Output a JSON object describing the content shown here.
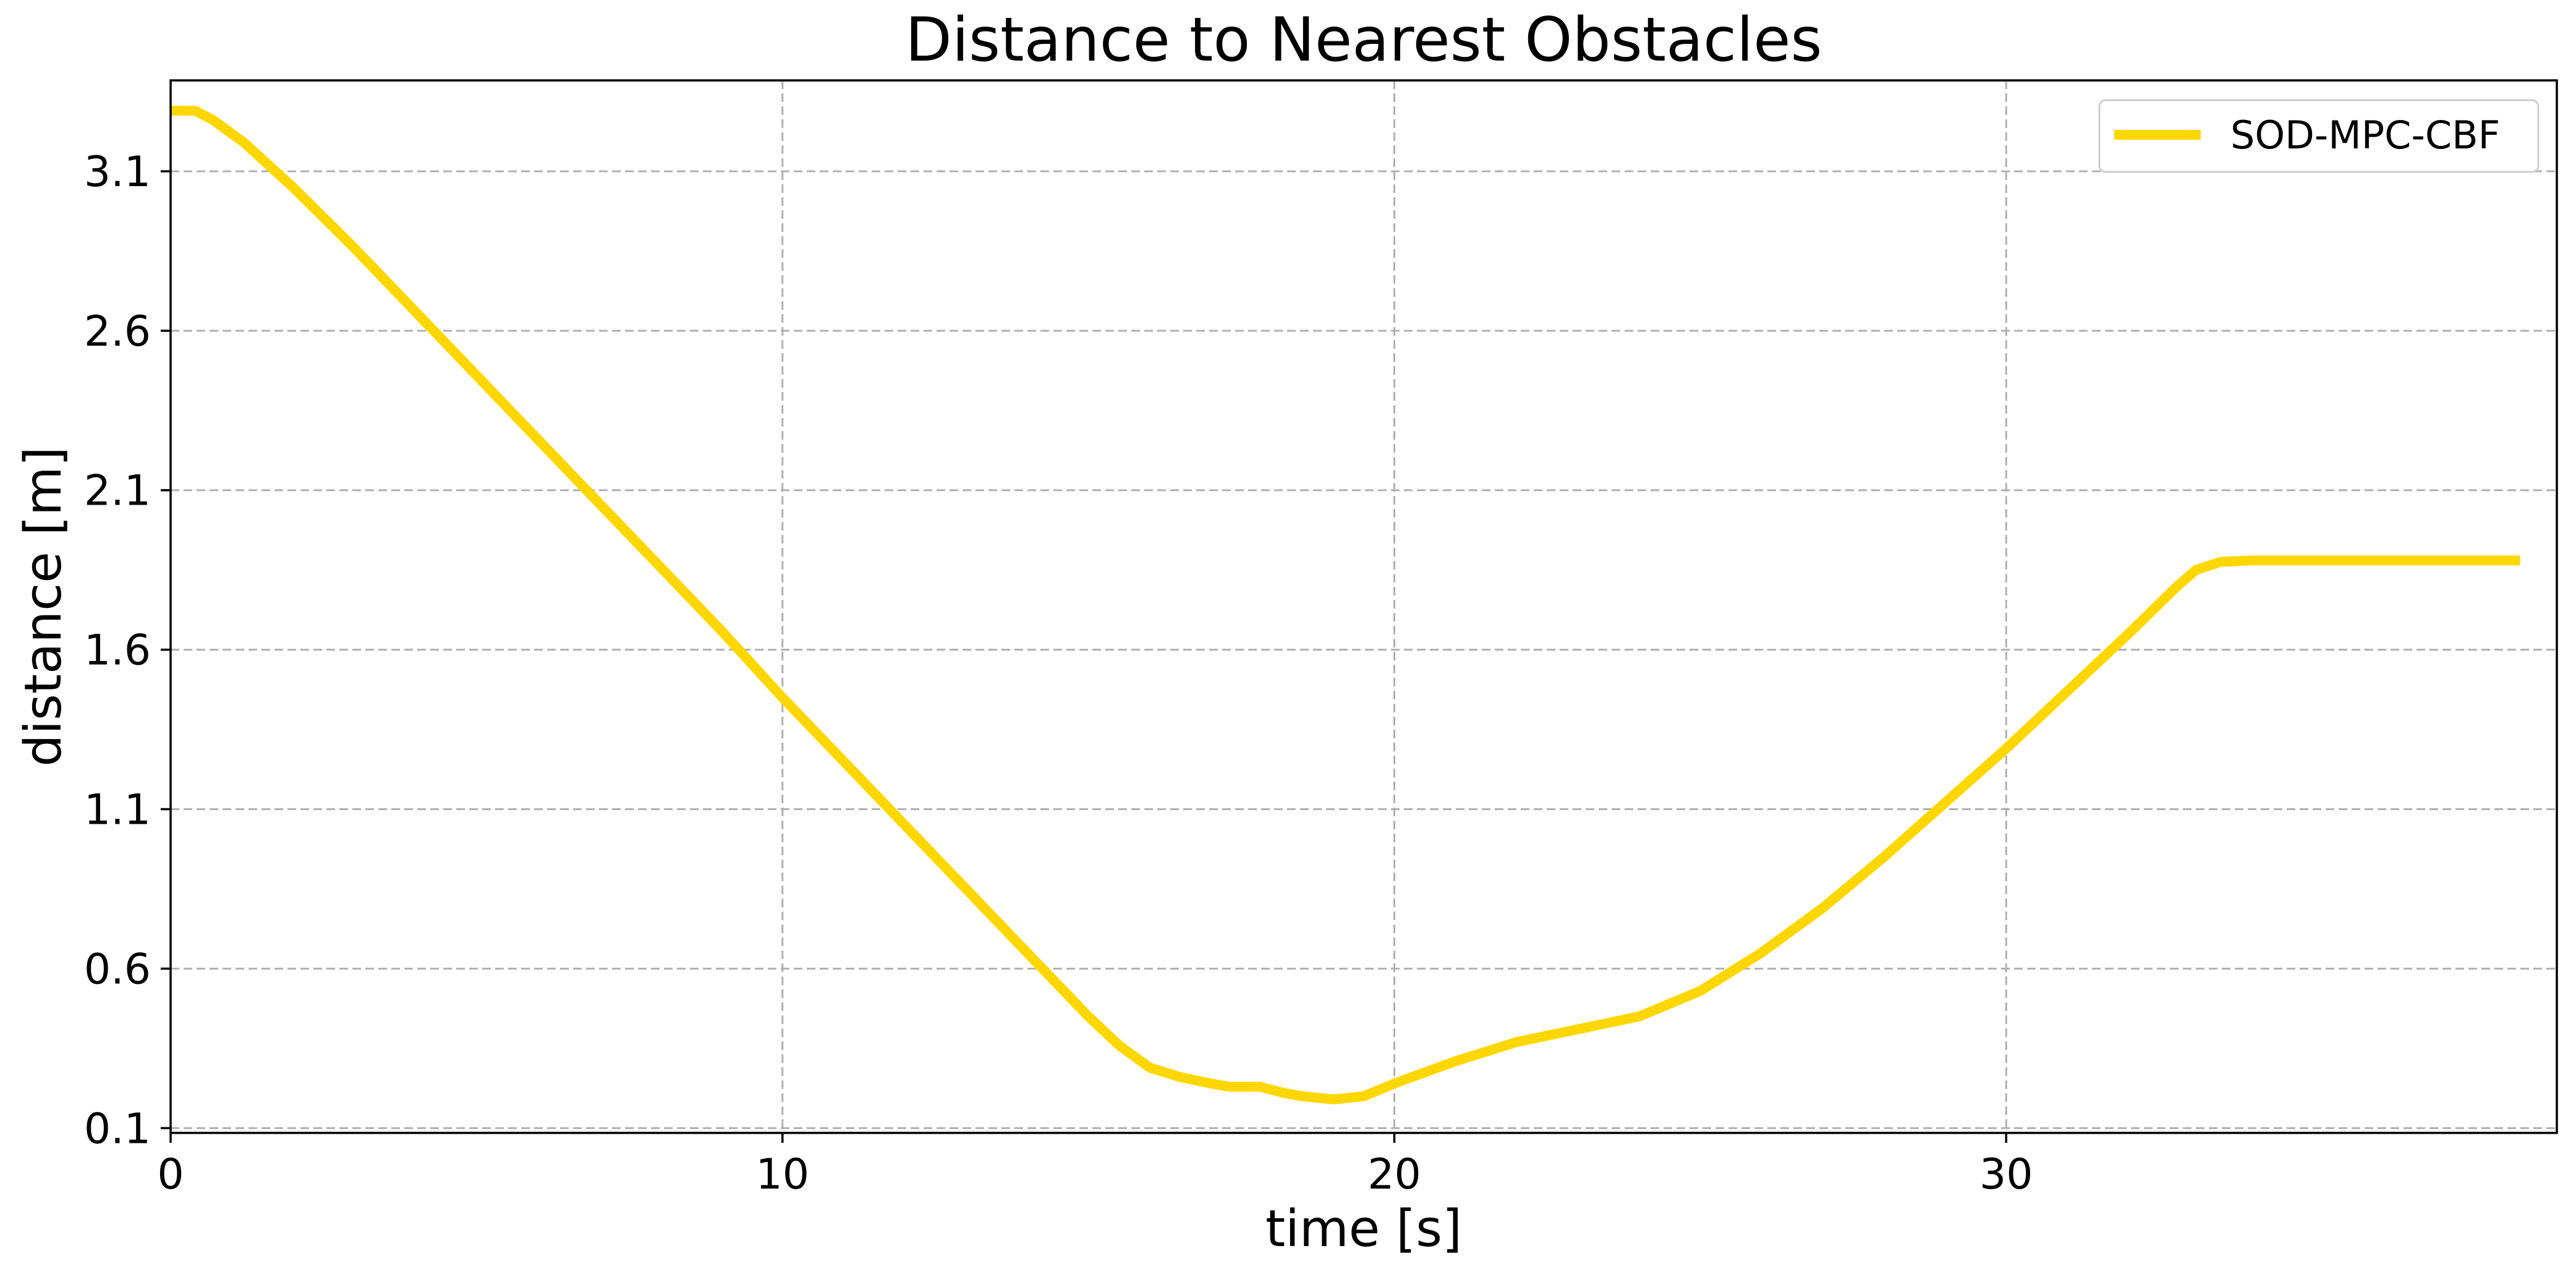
{
  "chart_data": {
    "type": "line",
    "title": "Distance to Nearest Obstacles",
    "xlabel": "time [s]",
    "ylabel": "distance [m]",
    "xlim": [
      0,
      39
    ],
    "ylim": [
      0.085,
      3.385
    ],
    "xticks": [
      0,
      10,
      20,
      30
    ],
    "yticks": [
      0.1,
      0.6,
      1.1,
      1.6,
      2.1,
      2.6,
      3.1
    ],
    "xtick_labels": [
      "0",
      "10",
      "20",
      "30"
    ],
    "ytick_labels": [
      "0.1",
      "0.6",
      "1.1",
      "1.6",
      "2.1",
      "2.6",
      "3.1"
    ],
    "grid": true,
    "legend_position": "top-right",
    "colors": {
      "series": "#ffd700"
    },
    "series": [
      {
        "name": "SOD-MPC-CBF",
        "x": [
          0,
          0.4,
          0.7,
          1.2,
          2,
          3,
          4,
          5,
          6,
          7,
          8,
          9,
          10,
          11,
          12,
          13,
          14,
          15,
          15.5,
          16,
          16.5,
          17,
          17.3,
          17.8,
          18.2,
          18.5,
          19,
          19.5,
          20,
          21,
          22,
          23,
          24,
          25,
          26,
          27,
          28,
          29,
          30,
          31,
          32,
          32.8,
          33.1,
          33.5,
          34,
          35,
          36,
          37,
          38,
          38.4
        ],
        "y": [
          3.29,
          3.29,
          3.26,
          3.19,
          3.05,
          2.86,
          2.66,
          2.46,
          2.26,
          2.06,
          1.86,
          1.66,
          1.45,
          1.25,
          1.05,
          0.85,
          0.65,
          0.45,
          0.36,
          0.29,
          0.26,
          0.24,
          0.23,
          0.23,
          0.21,
          0.2,
          0.19,
          0.2,
          0.24,
          0.31,
          0.37,
          0.41,
          0.45,
          0.53,
          0.65,
          0.79,
          0.95,
          1.12,
          1.29,
          1.47,
          1.65,
          1.8,
          1.85,
          1.875,
          1.88,
          1.88,
          1.88,
          1.88,
          1.88,
          1.88
        ]
      }
    ]
  }
}
